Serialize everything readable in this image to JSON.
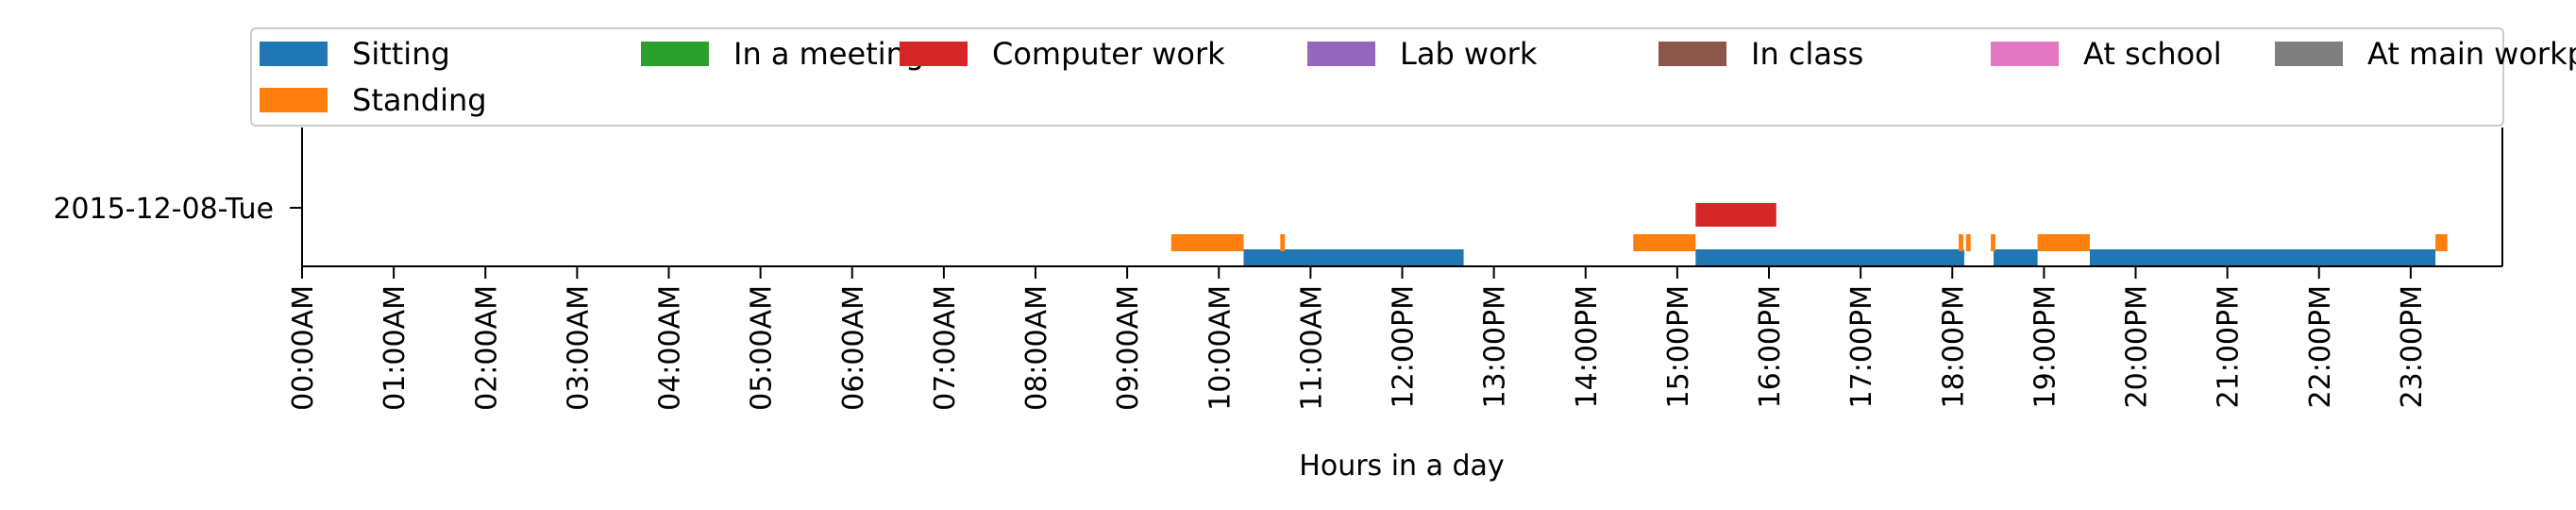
{
  "chart_data": {
    "type": "broken_barh",
    "xlabel": "Hours in a day",
    "ylabel": "",
    "xlim": [
      0,
      24
    ],
    "x_ticks": [
      "00:00AM",
      "01:00AM",
      "02:00AM",
      "03:00AM",
      "04:00AM",
      "05:00AM",
      "06:00AM",
      "07:00AM",
      "08:00AM",
      "09:00AM",
      "10:00AM",
      "11:00AM",
      "12:00PM",
      "13:00PM",
      "14:00PM",
      "15:00PM",
      "16:00PM",
      "17:00PM",
      "18:00PM",
      "19:00PM",
      "20:00PM",
      "21:00PM",
      "22:00PM",
      "23:00PM"
    ],
    "y_ticks": [
      "2015-12-08-Tue"
    ],
    "legend_position": "top",
    "series": [
      {
        "name": "Sitting",
        "color": "#1f77b4",
        "lane": 0,
        "intervals": [
          [
            10.27,
            12.67
          ],
          [
            15.2,
            18.13
          ],
          [
            18.45,
            18.93
          ],
          [
            19.5,
            23.27
          ]
        ]
      },
      {
        "name": "Standing",
        "color": "#ff7f0e",
        "lane": 1,
        "intervals": [
          [
            9.48,
            10.27
          ],
          [
            10.67,
            10.72
          ],
          [
            14.52,
            15.2
          ],
          [
            18.07,
            18.12
          ],
          [
            18.15,
            18.2
          ],
          [
            18.42,
            18.47
          ],
          [
            18.93,
            19.5
          ],
          [
            23.27,
            23.4
          ]
        ]
      },
      {
        "name": "In a meeting",
        "color": "#2ca02c",
        "lane": 2,
        "intervals": []
      },
      {
        "name": "Computer work",
        "color": "#d62728",
        "lane": 3,
        "intervals": [
          [
            15.2,
            16.08
          ]
        ]
      },
      {
        "name": "Lab work",
        "color": "#9467bd",
        "lane": 4,
        "intervals": []
      },
      {
        "name": "In class",
        "color": "#8c564b",
        "lane": 5,
        "intervals": []
      },
      {
        "name": "At school",
        "color": "#e377c2",
        "lane": 6,
        "intervals": []
      },
      {
        "name": "At main workplace",
        "color": "#7f7f7f",
        "lane": 7,
        "intervals": []
      }
    ]
  }
}
